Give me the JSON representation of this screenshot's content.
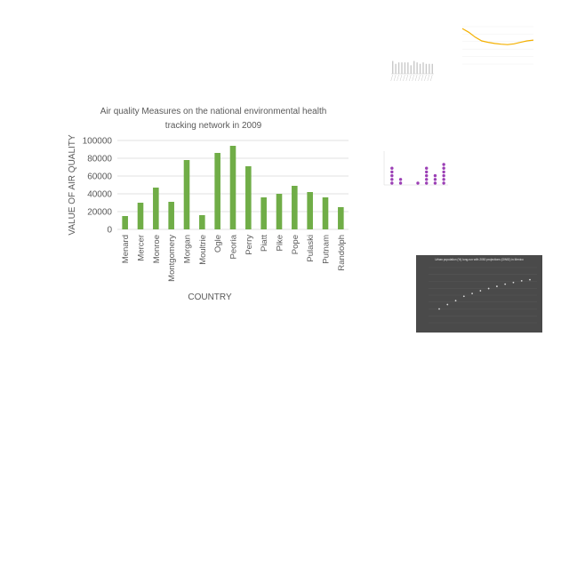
{
  "chart_data": [
    {
      "type": "bar",
      "title_lines": [
        "Air quality Measures on the national environmental health",
        "tracking network in 2009"
      ],
      "xlabel": "COUNTRY",
      "ylabel": "VALUE OF AIR QUALITY",
      "ylim": [
        0,
        100000
      ],
      "yticks": [
        "0",
        "20000",
        "40000",
        "60000",
        "80000",
        "100000"
      ],
      "grid": true,
      "bar_color": "#70AD47",
      "categories": [
        "Menard",
        "Mercer",
        "Monroe",
        "Montgomery",
        "Morgan",
        "Moultrie",
        "Ogle",
        "Peoria",
        "Perry",
        "Piatt",
        "Pike",
        "Pope",
        "Pulaski",
        "Putnam",
        "Randolph"
      ],
      "values": [
        15000,
        30000,
        47000,
        31000,
        78000,
        16000,
        86000,
        94000,
        71000,
        36000,
        40000,
        49000,
        42000,
        36000,
        25000
      ]
    },
    {
      "type": "bar",
      "title": "",
      "bar_color": "#c8c8c8",
      "values": [
        9,
        7,
        8,
        8,
        8,
        8,
        6,
        9,
        8,
        7,
        8,
        7,
        7,
        7
      ]
    },
    {
      "type": "line",
      "title": "",
      "line_color": "#F4B000",
      "values": [
        95,
        85,
        72,
        62,
        58,
        55,
        53,
        52,
        54,
        58,
        62,
        64
      ]
    },
    {
      "type": "scatter",
      "title": "",
      "point_color": "#9B3FB5",
      "counts": [
        5,
        2,
        0,
        1,
        5,
        3,
        6
      ]
    },
    {
      "type": "scatter",
      "title": "Urban population (%) long-run with 2050 projections (OWID) in Mexico",
      "background": "#4a4a4a",
      "point_color": "#d9d9d9",
      "values": [
        25,
        33,
        40,
        48,
        53,
        58,
        62,
        66,
        70,
        73,
        76,
        78
      ]
    }
  ]
}
